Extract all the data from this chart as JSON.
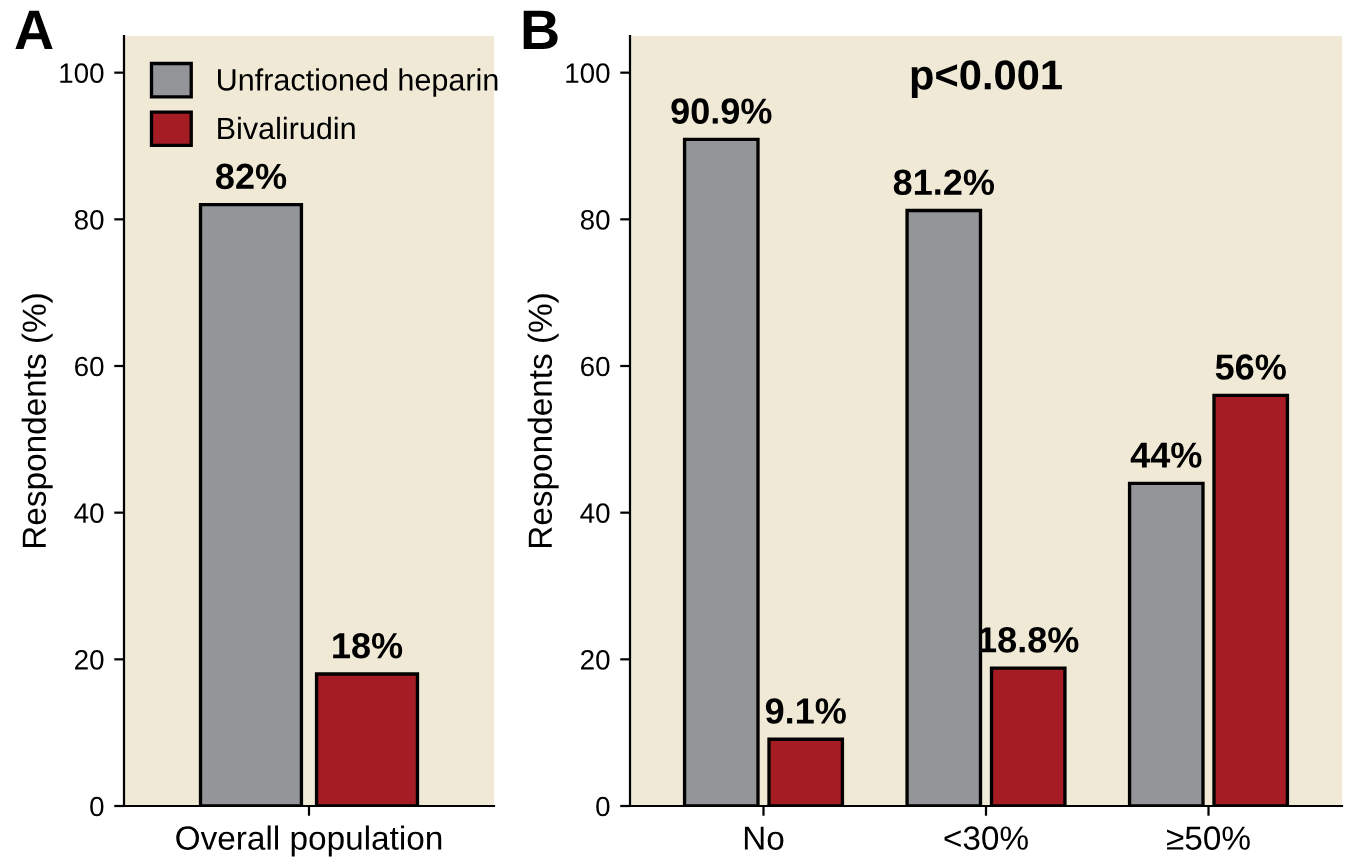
{
  "chart_data": [
    {
      "type": "bar",
      "title": "A",
      "ylabel": "Respondents (%)",
      "categories": [
        "Overall population"
      ],
      "ylim": [
        0,
        105
      ],
      "yticks": [
        0,
        20,
        40,
        60,
        80,
        100
      ],
      "legend": "top left",
      "grid": false,
      "series": [
        {
          "name": "Unfractioned heparin",
          "color": "#939598",
          "values": [
            82
          ],
          "value_labels": [
            "82%"
          ]
        },
        {
          "name": "Bivalirudin",
          "color": "#a51c24",
          "values": [
            18
          ],
          "value_labels": [
            "18%"
          ]
        }
      ]
    },
    {
      "type": "bar",
      "title": "B",
      "ylabel": "Respondents (%)",
      "categories": [
        "No",
        "<30%",
        "≥50%"
      ],
      "ylim": [
        0,
        105
      ],
      "yticks": [
        0,
        20,
        40,
        60,
        80,
        100
      ],
      "legend": false,
      "grid": false,
      "annotations": [
        "p<0.001"
      ],
      "series": [
        {
          "color": "#939598",
          "values": [
            90.9,
            81.2,
            44
          ],
          "value_labels": [
            "90.9%",
            "81.2%",
            "44%"
          ]
        },
        {
          "color": "#a51c24",
          "values": [
            9.1,
            18.8,
            56
          ],
          "value_labels": [
            "9.1%",
            "18.8%",
            "56%"
          ]
        }
      ]
    }
  ]
}
